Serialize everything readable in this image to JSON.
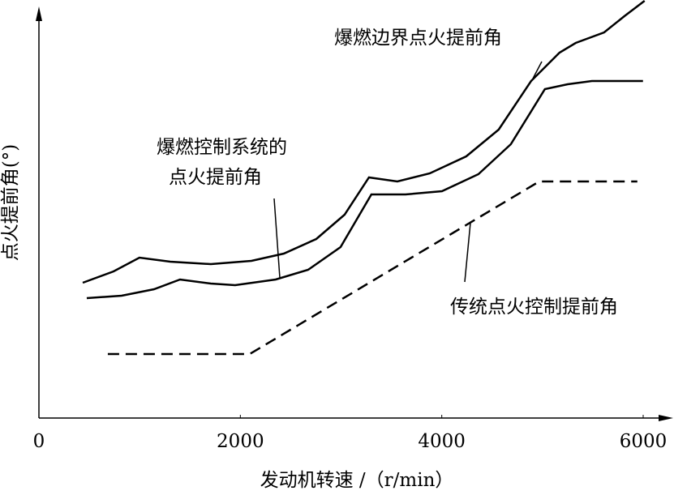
{
  "chart_data": {
    "type": "line",
    "x_label": "发动机转速 /（r/min）",
    "y_label": "点火提前角(°)",
    "annotations": [
      "爆燃边界点火提前角",
      "爆燃控制系统的",
      "点火提前角",
      "传统点火控制提前角"
    ],
    "xlim": [
      0,
      6000
    ],
    "xticks": [
      0,
      2000,
      4000,
      6000
    ],
    "ylim": [
      0,
      104
    ],
    "series": [
      {
        "color": "#000000",
        "line_style": "solid",
        "x": [
          435,
          741,
          998,
          1304,
          1707,
          2110,
          2432,
          2754,
          3035,
          3277,
          3559,
          3881,
          4243,
          4565,
          4887,
          5169,
          5330,
          5612,
          5813,
          6014
        ],
        "values": [
          33.4,
          36.2,
          39.6,
          38.6,
          38,
          38.8,
          40.6,
          44.2,
          50.2,
          59.4,
          58.4,
          60.4,
          64.6,
          71.2,
          83.2,
          90.2,
          92.6,
          95.2,
          99.2,
          103
        ]
      },
      {
        "color": "#000000",
        "line_style": "solid",
        "x": [
          475,
          821,
          1143,
          1401,
          1707,
          1948,
          2351,
          2673,
          2995,
          3301,
          3640,
          4002,
          4364,
          4686,
          5024,
          5250,
          5491,
          5998
        ],
        "values": [
          29.6,
          30.2,
          31.8,
          34.2,
          33.2,
          32.8,
          34.2,
          36.6,
          42.2,
          55.2,
          55.2,
          56,
          60.2,
          67.6,
          81.2,
          82.4,
          83.2,
          83.2
        ]
      },
      {
        "color": "#000000",
        "line_style": "dashed",
        "x": [
          684,
          2093,
          4968,
          5942
        ],
        "values": [
          15.8,
          15.8,
          58.4,
          58.4
        ]
      }
    ]
  }
}
